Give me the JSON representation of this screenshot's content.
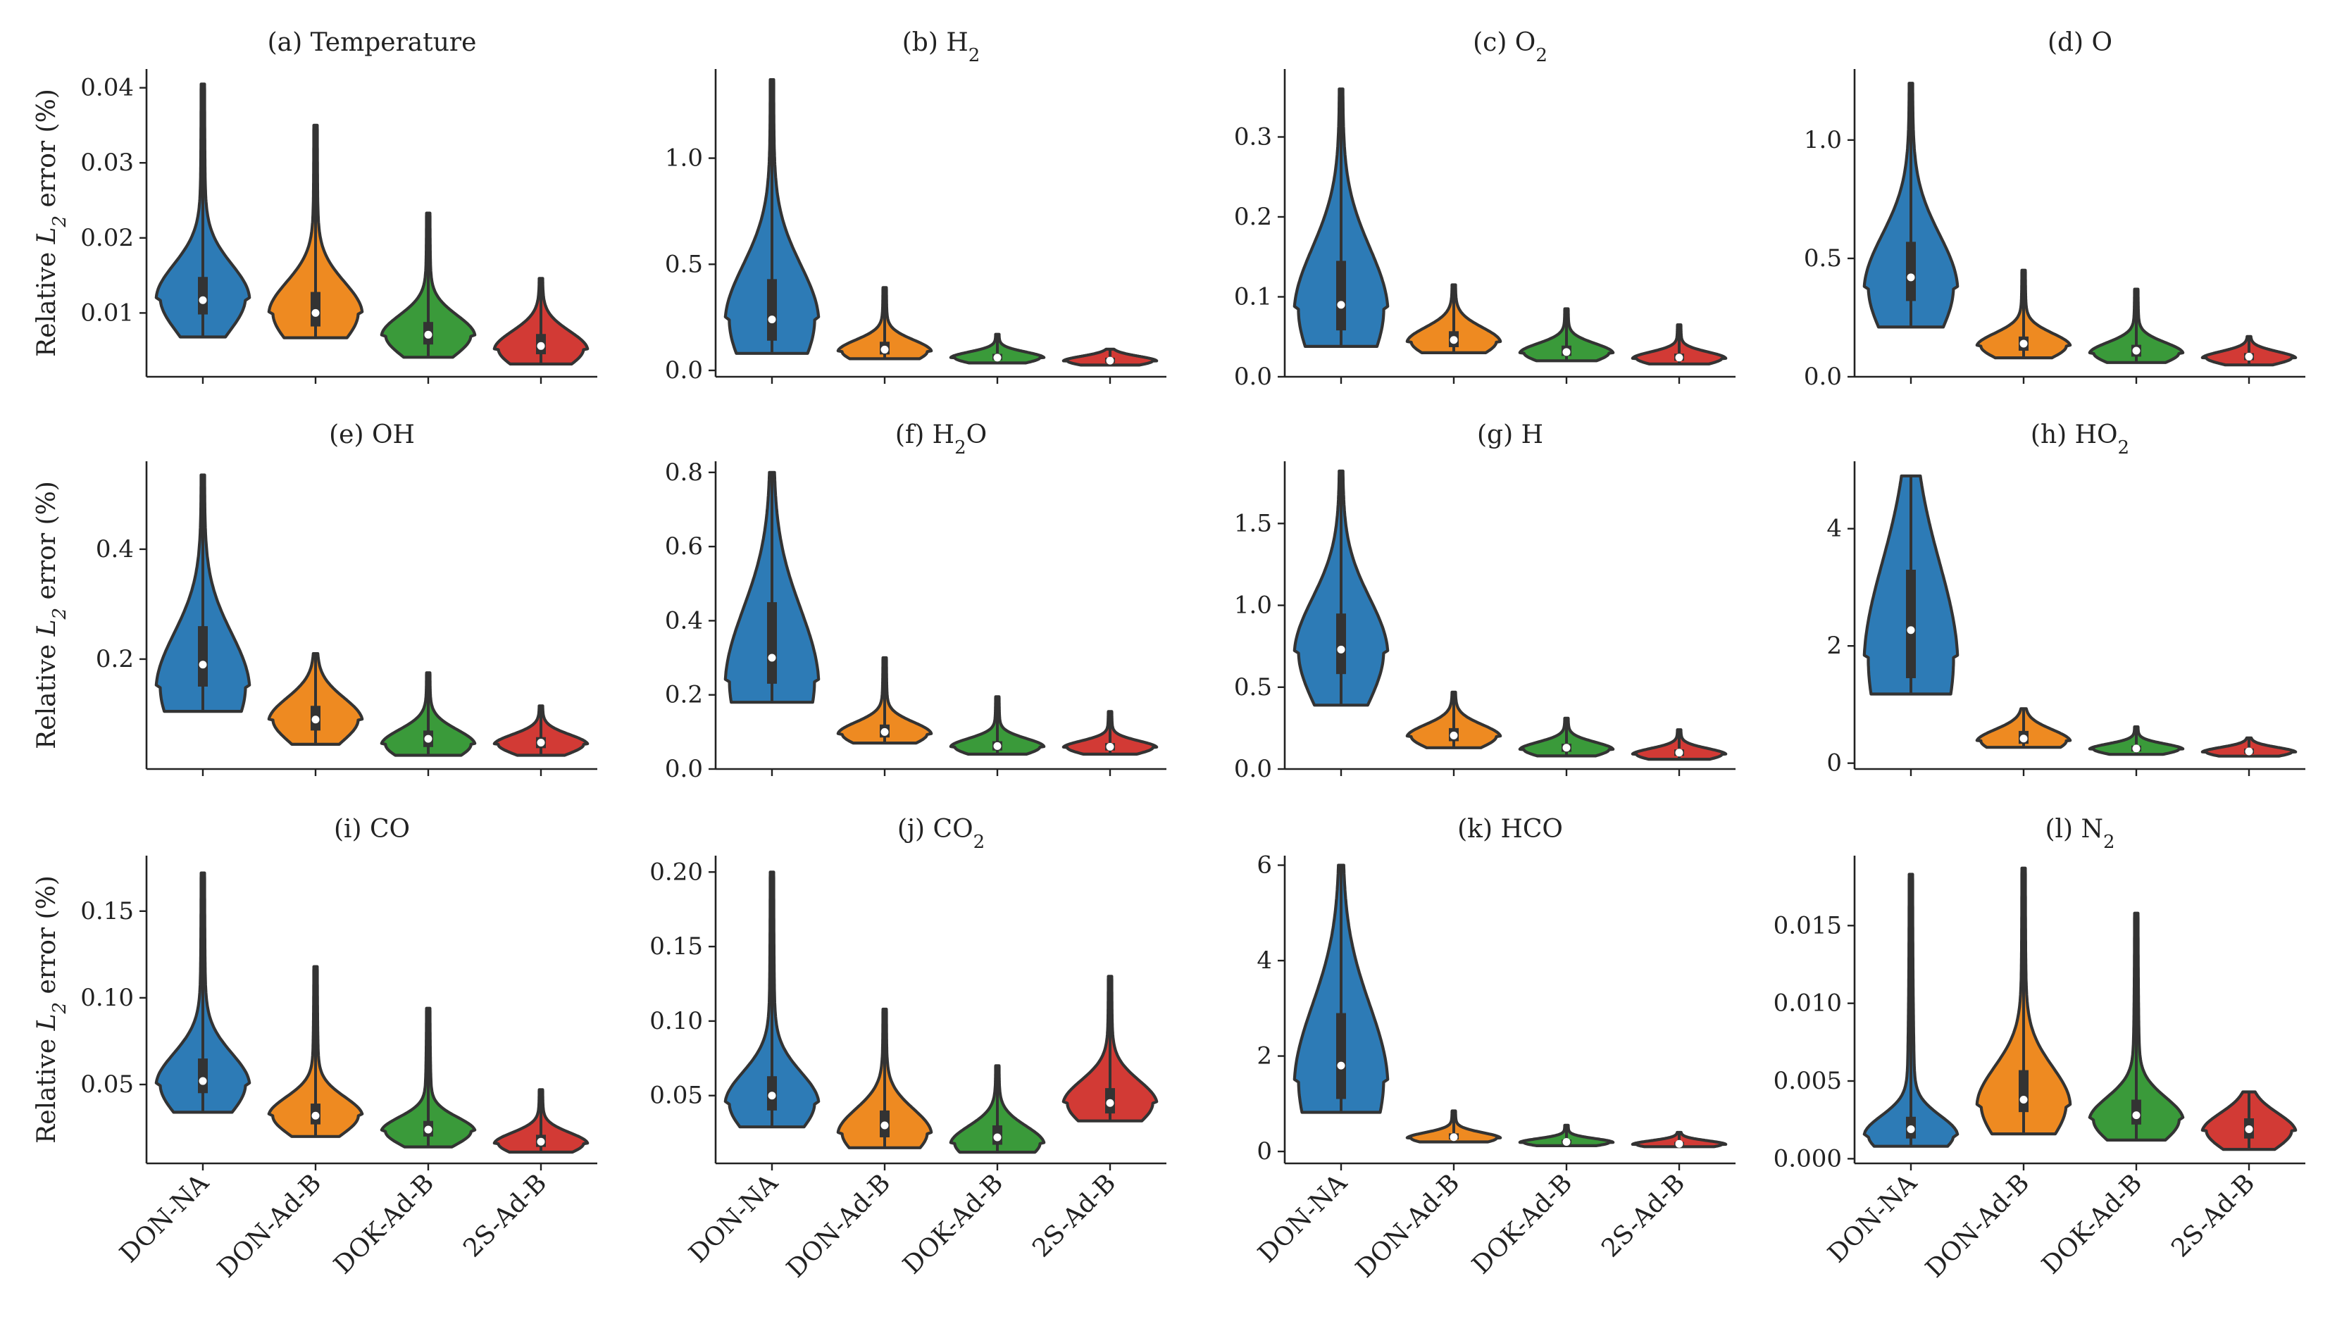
{
  "colors": {
    "DON-NA": "#2d7bb6",
    "DON-Ad-B": "#ee8a21",
    "DOK-Ad-B": "#3a9a3a",
    "2S-Ad-B": "#d23a35",
    "outline": "#333333"
  },
  "chart_data": [
    {
      "type": "violin",
      "title": "(a) Temperature",
      "ylabel": "Relative L2 error (%)",
      "categories": [
        "DON-NA",
        "DON-Ad-B",
        "DOK-Ad-B",
        "2S-Ad-B"
      ],
      "yticks": [
        0.01,
        0.02,
        0.03,
        0.04
      ],
      "yticklabels": [
        "0.01",
        "0.02",
        "0.03",
        "0.04"
      ],
      "ylim": [
        0.0015,
        0.0425
      ],
      "series": [
        {
          "name": "DON-NA",
          "min": 0.0068,
          "q1": 0.0098,
          "median": 0.0117,
          "q3": 0.0148,
          "max": 0.0405,
          "mode": 0.012
        },
        {
          "name": "DON-Ad-B",
          "min": 0.0067,
          "q1": 0.0082,
          "median": 0.01,
          "q3": 0.0128,
          "max": 0.035,
          "mode": 0.01
        },
        {
          "name": "DOK-Ad-B",
          "min": 0.0041,
          "q1": 0.0058,
          "median": 0.0071,
          "q3": 0.0088,
          "max": 0.0233,
          "mode": 0.007
        },
        {
          "name": "2S-Ad-B",
          "min": 0.0032,
          "q1": 0.0045,
          "median": 0.0056,
          "q3": 0.0072,
          "max": 0.0146,
          "mode": 0.0052
        }
      ]
    },
    {
      "type": "violin",
      "title": "(b) H2",
      "ylabel": "",
      "categories": [
        "DON-NA",
        "DON-Ad-B",
        "DOK-Ad-B",
        "2S-Ad-B"
      ],
      "yticks": [
        0.0,
        0.5,
        1.0
      ],
      "yticklabels": [
        "0.0",
        "0.5",
        "1.0"
      ],
      "ylim": [
        -0.03,
        1.42
      ],
      "series": [
        {
          "name": "DON-NA",
          "min": 0.08,
          "q1": 0.14,
          "median": 0.24,
          "q3": 0.43,
          "max": 1.37,
          "mode": 0.24
        },
        {
          "name": "DON-Ad-B",
          "min": 0.055,
          "q1": 0.075,
          "median": 0.098,
          "q3": 0.135,
          "max": 0.39,
          "mode": 0.09
        },
        {
          "name": "DOK-Ad-B",
          "min": 0.035,
          "q1": 0.048,
          "median": 0.06,
          "q3": 0.078,
          "max": 0.17,
          "mode": 0.06
        },
        {
          "name": "2S-Ad-B",
          "min": 0.025,
          "q1": 0.035,
          "median": 0.046,
          "q3": 0.06,
          "max": 0.1,
          "mode": 0.045
        }
      ]
    },
    {
      "type": "violin",
      "title": "(c) O2",
      "ylabel": "",
      "categories": [
        "DON-NA",
        "DON-Ad-B",
        "DOK-Ad-B",
        "2S-Ad-B"
      ],
      "yticks": [
        0.0,
        0.1,
        0.2,
        0.3
      ],
      "yticklabels": [
        "0.0",
        "0.1",
        "0.2",
        "0.3"
      ],
      "ylim": [
        0.0,
        0.385
      ],
      "series": [
        {
          "name": "DON-NA",
          "min": 0.038,
          "q1": 0.058,
          "median": 0.09,
          "q3": 0.145,
          "max": 0.36,
          "mode": 0.085
        },
        {
          "name": "DON-Ad-B",
          "min": 0.03,
          "q1": 0.037,
          "median": 0.046,
          "q3": 0.057,
          "max": 0.115,
          "mode": 0.044
        },
        {
          "name": "DOK-Ad-B",
          "min": 0.02,
          "q1": 0.026,
          "median": 0.031,
          "q3": 0.039,
          "max": 0.085,
          "mode": 0.03
        },
        {
          "name": "2S-Ad-B",
          "min": 0.016,
          "q1": 0.02,
          "median": 0.024,
          "q3": 0.029,
          "max": 0.065,
          "mode": 0.023
        }
      ]
    },
    {
      "type": "violin",
      "title": "(d) O",
      "ylabel": "",
      "categories": [
        "DON-NA",
        "DON-Ad-B",
        "DOK-Ad-B",
        "2S-Ad-B"
      ],
      "yticks": [
        0.0,
        0.5,
        1.0
      ],
      "yticklabels": [
        "0.0",
        "0.5",
        "1.0"
      ],
      "ylim": [
        0.0,
        1.3
      ],
      "series": [
        {
          "name": "DON-NA",
          "min": 0.21,
          "q1": 0.32,
          "median": 0.42,
          "q3": 0.57,
          "max": 1.24,
          "mode": 0.38
        },
        {
          "name": "DON-Ad-B",
          "min": 0.08,
          "q1": 0.11,
          "median": 0.14,
          "q3": 0.17,
          "max": 0.45,
          "mode": 0.13
        },
        {
          "name": "DOK-Ad-B",
          "min": 0.06,
          "q1": 0.085,
          "median": 0.11,
          "q3": 0.135,
          "max": 0.37,
          "mode": 0.1
        },
        {
          "name": "2S-Ad-B",
          "min": 0.05,
          "q1": 0.07,
          "median": 0.085,
          "q3": 0.1,
          "max": 0.17,
          "mode": 0.08
        }
      ]
    },
    {
      "type": "violin",
      "title": "(e) OH",
      "ylabel": "Relative L2 error (%)",
      "categories": [
        "DON-NA",
        "DON-Ad-B",
        "DOK-Ad-B",
        "2S-Ad-B"
      ],
      "yticks": [
        0.2,
        0.4
      ],
      "yticklabels": [
        "0.2",
        "0.4"
      ],
      "ylim": [
        0.0,
        0.56
      ],
      "series": [
        {
          "name": "DON-NA",
          "min": 0.105,
          "q1": 0.15,
          "median": 0.19,
          "q3": 0.26,
          "max": 0.535,
          "mode": 0.15
        },
        {
          "name": "DON-Ad-B",
          "min": 0.045,
          "q1": 0.07,
          "median": 0.09,
          "q3": 0.115,
          "max": 0.21,
          "mode": 0.09
        },
        {
          "name": "DOK-Ad-B",
          "min": 0.025,
          "q1": 0.04,
          "median": 0.055,
          "q3": 0.07,
          "max": 0.175,
          "mode": 0.045
        },
        {
          "name": "2S-Ad-B",
          "min": 0.025,
          "q1": 0.038,
          "median": 0.048,
          "q3": 0.058,
          "max": 0.115,
          "mode": 0.045
        }
      ]
    },
    {
      "type": "violin",
      "title": "(f) H2O",
      "ylabel": "",
      "categories": [
        "DON-NA",
        "DON-Ad-B",
        "DOK-Ad-B",
        "2S-Ad-B"
      ],
      "yticks": [
        0.0,
        0.2,
        0.4,
        0.6,
        0.8
      ],
      "yticklabels": [
        "0.0",
        "0.2",
        "0.4",
        "0.6",
        "0.8"
      ],
      "ylim": [
        0.0,
        0.83
      ],
      "series": [
        {
          "name": "DON-NA",
          "min": 0.18,
          "q1": 0.23,
          "median": 0.3,
          "q3": 0.45,
          "max": 0.8,
          "mode": 0.24
        },
        {
          "name": "DON-Ad-B",
          "min": 0.07,
          "q1": 0.085,
          "median": 0.1,
          "q3": 0.12,
          "max": 0.3,
          "mode": 0.095
        },
        {
          "name": "DOK-Ad-B",
          "min": 0.04,
          "q1": 0.05,
          "median": 0.062,
          "q3": 0.075,
          "max": 0.195,
          "mode": 0.06
        },
        {
          "name": "2S-Ad-B",
          "min": 0.04,
          "q1": 0.05,
          "median": 0.06,
          "q3": 0.07,
          "max": 0.155,
          "mode": 0.058
        }
      ]
    },
    {
      "type": "violin",
      "title": "(g) H",
      "ylabel": "",
      "categories": [
        "DON-NA",
        "DON-Ad-B",
        "DOK-Ad-B",
        "2S-Ad-B"
      ],
      "yticks": [
        0.0,
        0.5,
        1.0,
        1.5
      ],
      "yticklabels": [
        "0.0",
        "0.5",
        "1.0",
        "1.5"
      ],
      "ylim": [
        0.0,
        1.88
      ],
      "series": [
        {
          "name": "DON-NA",
          "min": 0.39,
          "q1": 0.58,
          "median": 0.73,
          "q3": 0.95,
          "max": 1.82,
          "mode": 0.72
        },
        {
          "name": "DON-Ad-B",
          "min": 0.13,
          "q1": 0.17,
          "median": 0.205,
          "q3": 0.25,
          "max": 0.47,
          "mode": 0.2
        },
        {
          "name": "DOK-Ad-B",
          "min": 0.08,
          "q1": 0.105,
          "median": 0.13,
          "q3": 0.155,
          "max": 0.31,
          "mode": 0.12
        },
        {
          "name": "2S-Ad-B",
          "min": 0.06,
          "q1": 0.08,
          "median": 0.1,
          "q3": 0.12,
          "max": 0.24,
          "mode": 0.09
        }
      ]
    },
    {
      "type": "violin",
      "title": "(h) HO2",
      "ylabel": "",
      "categories": [
        "DON-NA",
        "DON-Ad-B",
        "DOK-Ad-B",
        "2S-Ad-B"
      ],
      "yticks": [
        0,
        2,
        4
      ],
      "yticklabels": [
        "0",
        "2",
        "4"
      ],
      "ylim": [
        -0.1,
        5.15
      ],
      "series": [
        {
          "name": "DON-NA",
          "min": 1.18,
          "q1": 1.45,
          "median": 2.27,
          "q3": 3.3,
          "max": 4.9,
          "mode": 1.8
        },
        {
          "name": "DON-Ad-B",
          "min": 0.27,
          "q1": 0.33,
          "median": 0.42,
          "q3": 0.55,
          "max": 0.93,
          "mode": 0.38
        },
        {
          "name": "DOK-Ad-B",
          "min": 0.15,
          "q1": 0.2,
          "median": 0.25,
          "q3": 0.3,
          "max": 0.62,
          "mode": 0.24
        },
        {
          "name": "2S-Ad-B",
          "min": 0.12,
          "q1": 0.16,
          "median": 0.2,
          "q3": 0.25,
          "max": 0.43,
          "mode": 0.19
        }
      ]
    },
    {
      "type": "violin",
      "title": "(i) CO",
      "ylabel": "Relative L2 error (%)",
      "categories": [
        "DON-NA",
        "DON-Ad-B",
        "DOK-Ad-B",
        "2S-Ad-B"
      ],
      "yticks": [
        0.05,
        0.1,
        0.15
      ],
      "yticklabels": [
        "0.05",
        "0.10",
        "0.15"
      ],
      "ylim": [
        0.0045,
        0.182
      ],
      "series": [
        {
          "name": "DON-NA",
          "min": 0.034,
          "q1": 0.045,
          "median": 0.052,
          "q3": 0.065,
          "max": 0.172,
          "mode": 0.05
        },
        {
          "name": "DON-Ad-B",
          "min": 0.02,
          "q1": 0.027,
          "median": 0.032,
          "q3": 0.039,
          "max": 0.118,
          "mode": 0.032
        },
        {
          "name": "DOK-Ad-B",
          "min": 0.014,
          "q1": 0.02,
          "median": 0.024,
          "q3": 0.029,
          "max": 0.094,
          "mode": 0.023
        },
        {
          "name": "2S-Ad-B",
          "min": 0.011,
          "q1": 0.014,
          "median": 0.017,
          "q3": 0.021,
          "max": 0.047,
          "mode": 0.016
        }
      ]
    },
    {
      "type": "violin",
      "title": "(j) CO2",
      "ylabel": "",
      "categories": [
        "DON-NA",
        "DON-Ad-B",
        "DOK-Ad-B",
        "2S-Ad-B"
      ],
      "yticks": [
        0.05,
        0.1,
        0.15,
        0.2
      ],
      "yticklabels": [
        "0.05",
        "0.10",
        "0.15",
        "0.20"
      ],
      "ylim": [
        0.0045,
        0.211
      ],
      "series": [
        {
          "name": "DON-NA",
          "min": 0.029,
          "q1": 0.04,
          "median": 0.05,
          "q3": 0.063,
          "max": 0.2,
          "mode": 0.045
        },
        {
          "name": "DON-Ad-B",
          "min": 0.015,
          "q1": 0.022,
          "median": 0.03,
          "q3": 0.04,
          "max": 0.108,
          "mode": 0.025
        },
        {
          "name": "DOK-Ad-B",
          "min": 0.012,
          "q1": 0.017,
          "median": 0.022,
          "q3": 0.03,
          "max": 0.07,
          "mode": 0.018
        },
        {
          "name": "2S-Ad-B",
          "min": 0.033,
          "q1": 0.038,
          "median": 0.045,
          "q3": 0.055,
          "max": 0.13,
          "mode": 0.045
        }
      ]
    },
    {
      "type": "violin",
      "title": "(k) HCO",
      "ylabel": "",
      "categories": [
        "DON-NA",
        "DON-Ad-B",
        "DOK-Ad-B",
        "2S-Ad-B"
      ],
      "yticks": [
        0,
        2,
        4,
        6
      ],
      "yticklabels": [
        "0",
        "2",
        "4",
        "6"
      ],
      "ylim": [
        -0.25,
        6.2
      ],
      "series": [
        {
          "name": "DON-NA",
          "min": 0.82,
          "q1": 1.1,
          "median": 1.8,
          "q3": 2.9,
          "max": 6.0,
          "mode": 1.5
        },
        {
          "name": "DON-Ad-B",
          "min": 0.2,
          "q1": 0.25,
          "median": 0.3,
          "q3": 0.38,
          "max": 0.85,
          "mode": 0.28
        },
        {
          "name": "DOK-Ad-B",
          "min": 0.12,
          "q1": 0.16,
          "median": 0.2,
          "q3": 0.25,
          "max": 0.55,
          "mode": 0.19
        },
        {
          "name": "2S-Ad-B",
          "min": 0.1,
          "q1": 0.13,
          "median": 0.16,
          "q3": 0.2,
          "max": 0.4,
          "mode": 0.15
        }
      ]
    },
    {
      "type": "violin",
      "title": "(l) N2",
      "ylabel": "",
      "categories": [
        "DON-NA",
        "DON-Ad-B",
        "DOK-Ad-B",
        "2S-Ad-B"
      ],
      "yticks": [
        0.0,
        0.005,
        0.01,
        0.015
      ],
      "yticklabels": [
        "0.000",
        "0.005",
        "0.010",
        "0.015"
      ],
      "ylim": [
        -0.0003,
        0.0195
      ],
      "series": [
        {
          "name": "DON-NA",
          "min": 0.0008,
          "q1": 0.0013,
          "median": 0.0019,
          "q3": 0.0027,
          "max": 0.0183,
          "mode": 0.0015
        },
        {
          "name": "DON-Ad-B",
          "min": 0.0016,
          "q1": 0.003,
          "median": 0.0038,
          "q3": 0.0057,
          "max": 0.0187,
          "mode": 0.0035
        },
        {
          "name": "DOK-Ad-B",
          "min": 0.0012,
          "q1": 0.0022,
          "median": 0.0028,
          "q3": 0.0038,
          "max": 0.0158,
          "mode": 0.0025
        },
        {
          "name": "2S-Ad-B",
          "min": 0.0006,
          "q1": 0.0013,
          "median": 0.0019,
          "q3": 0.0026,
          "max": 0.0043,
          "mode": 0.0018
        }
      ]
    }
  ]
}
